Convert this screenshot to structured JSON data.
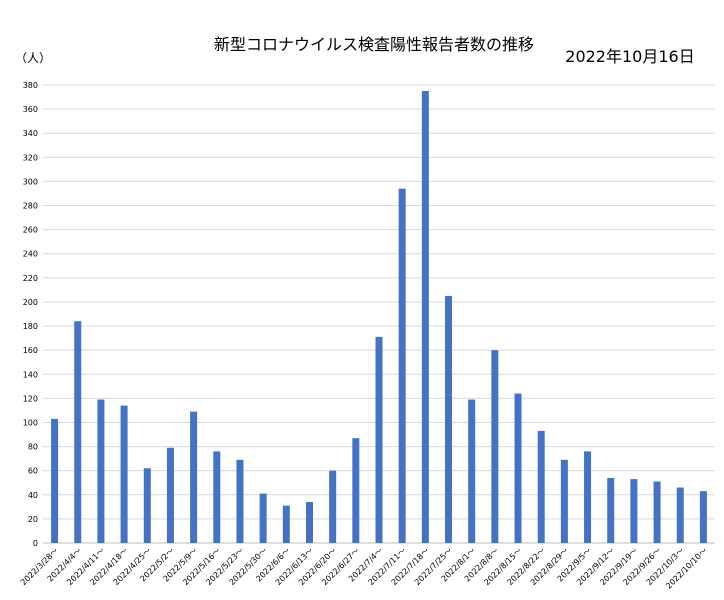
{
  "chart_data": {
    "type": "bar",
    "title": "新型コロナウイルス検査陽性報告者数の推移",
    "date_text": "2022年10月16日",
    "ylabel": "（人）",
    "xlabel": "",
    "ylim": [
      0,
      380
    ],
    "ytick_step": 20,
    "grid": true,
    "bar_color": "#4472c4",
    "categories": [
      "2022/3/28～",
      "2022/4/4～",
      "2022/4/11～",
      "2022/4/18～",
      "2022/4/25～",
      "2022/5/2～",
      "2022/5/9～",
      "2022/5/16～",
      "2022/5/23～",
      "2022/5/30～",
      "2022/6/6～",
      "2022/6/13～",
      "2022/6/20～",
      "2022/6/27～",
      "2022/7/4～",
      "2022/7/11～",
      "2022/7/18～",
      "2022/7/25～",
      "2022/8/1～",
      "2022/8/8～",
      "2022/8/15～",
      "2022/8/22～",
      "2022/8/29～",
      "2022/9/5～",
      "2022/9/12～",
      "2022/9/19～",
      "2022/9/26～",
      "2022/10/3～",
      "2022/10/10～"
    ],
    "values": [
      103,
      184,
      119,
      114,
      62,
      79,
      109,
      76,
      69,
      41,
      31,
      34,
      60,
      87,
      171,
      294,
      375,
      205,
      119,
      160,
      124,
      93,
      69,
      76,
      54,
      53,
      51,
      46,
      43
    ]
  }
}
